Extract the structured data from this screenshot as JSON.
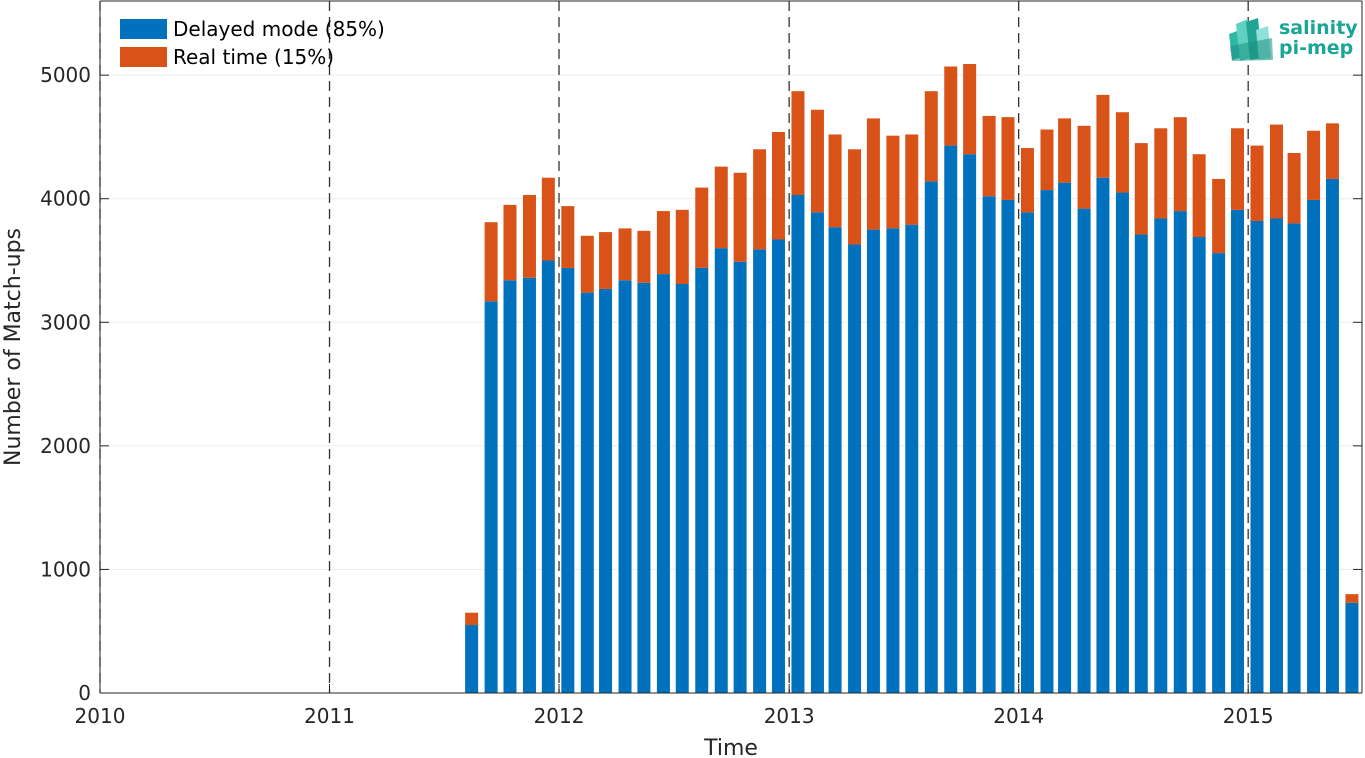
{
  "chart_data": {
    "type": "bar",
    "stacked": true,
    "xlabel": "Time",
    "ylabel": "Number of Match-ups",
    "xlim": [
      "2010-01-01",
      "2015-07-01"
    ],
    "ylim": [
      0,
      5600
    ],
    "year_ticks": [
      "2010",
      "2011",
      "2012",
      "2013",
      "2014",
      "2015"
    ],
    "y_ticks": [
      0,
      1000,
      2000,
      3000,
      4000,
      5000
    ],
    "grid": true,
    "year_boundary_lines": "dashed",
    "legend_position": "top-left",
    "months": [
      "2011-08",
      "2011-09",
      "2011-10",
      "2011-11",
      "2011-12",
      "2012-01",
      "2012-02",
      "2012-03",
      "2012-04",
      "2012-05",
      "2012-06",
      "2012-07",
      "2012-08",
      "2012-09",
      "2012-10",
      "2012-11",
      "2012-12",
      "2013-01",
      "2013-02",
      "2013-03",
      "2013-04",
      "2013-05",
      "2013-06",
      "2013-07",
      "2013-08",
      "2013-09",
      "2013-10",
      "2013-11",
      "2013-12",
      "2014-01",
      "2014-02",
      "2014-03",
      "2014-04",
      "2014-05",
      "2014-06",
      "2014-07",
      "2014-08",
      "2014-09",
      "2014-10",
      "2014-11",
      "2014-12",
      "2015-01",
      "2015-02",
      "2015-03",
      "2015-04",
      "2015-05",
      "2015-06"
    ],
    "series": [
      {
        "name": "Delayed mode (85%)",
        "color": "#0072BD",
        "values": [
          550,
          3170,
          3340,
          3360,
          3500,
          3440,
          3240,
          3270,
          3340,
          3320,
          3390,
          3310,
          3440,
          3600,
          3490,
          3590,
          3670,
          4030,
          3890,
          3770,
          3630,
          3750,
          3760,
          3790,
          4140,
          4430,
          4360,
          4020,
          3990,
          3890,
          4070,
          4130,
          3920,
          4170,
          4050,
          3710,
          3840,
          3900,
          3690,
          3560,
          3910,
          3820,
          3840,
          3800,
          3990,
          4160,
          730
        ]
      },
      {
        "name": "Real time (15%)",
        "color": "#D95319",
        "values": [
          100,
          640,
          610,
          670,
          670,
          500,
          460,
          460,
          420,
          420,
          510,
          600,
          650,
          660,
          720,
          810,
          870,
          840,
          830,
          750,
          770,
          900,
          750,
          730,
          730,
          640,
          730,
          650,
          670,
          520,
          490,
          520,
          670,
          670,
          650,
          740,
          730,
          760,
          670,
          600,
          660,
          610,
          760,
          570,
          560,
          450,
          70
        ]
      }
    ]
  },
  "logo": {
    "line1": "salinity",
    "line2": "pi-mep"
  }
}
